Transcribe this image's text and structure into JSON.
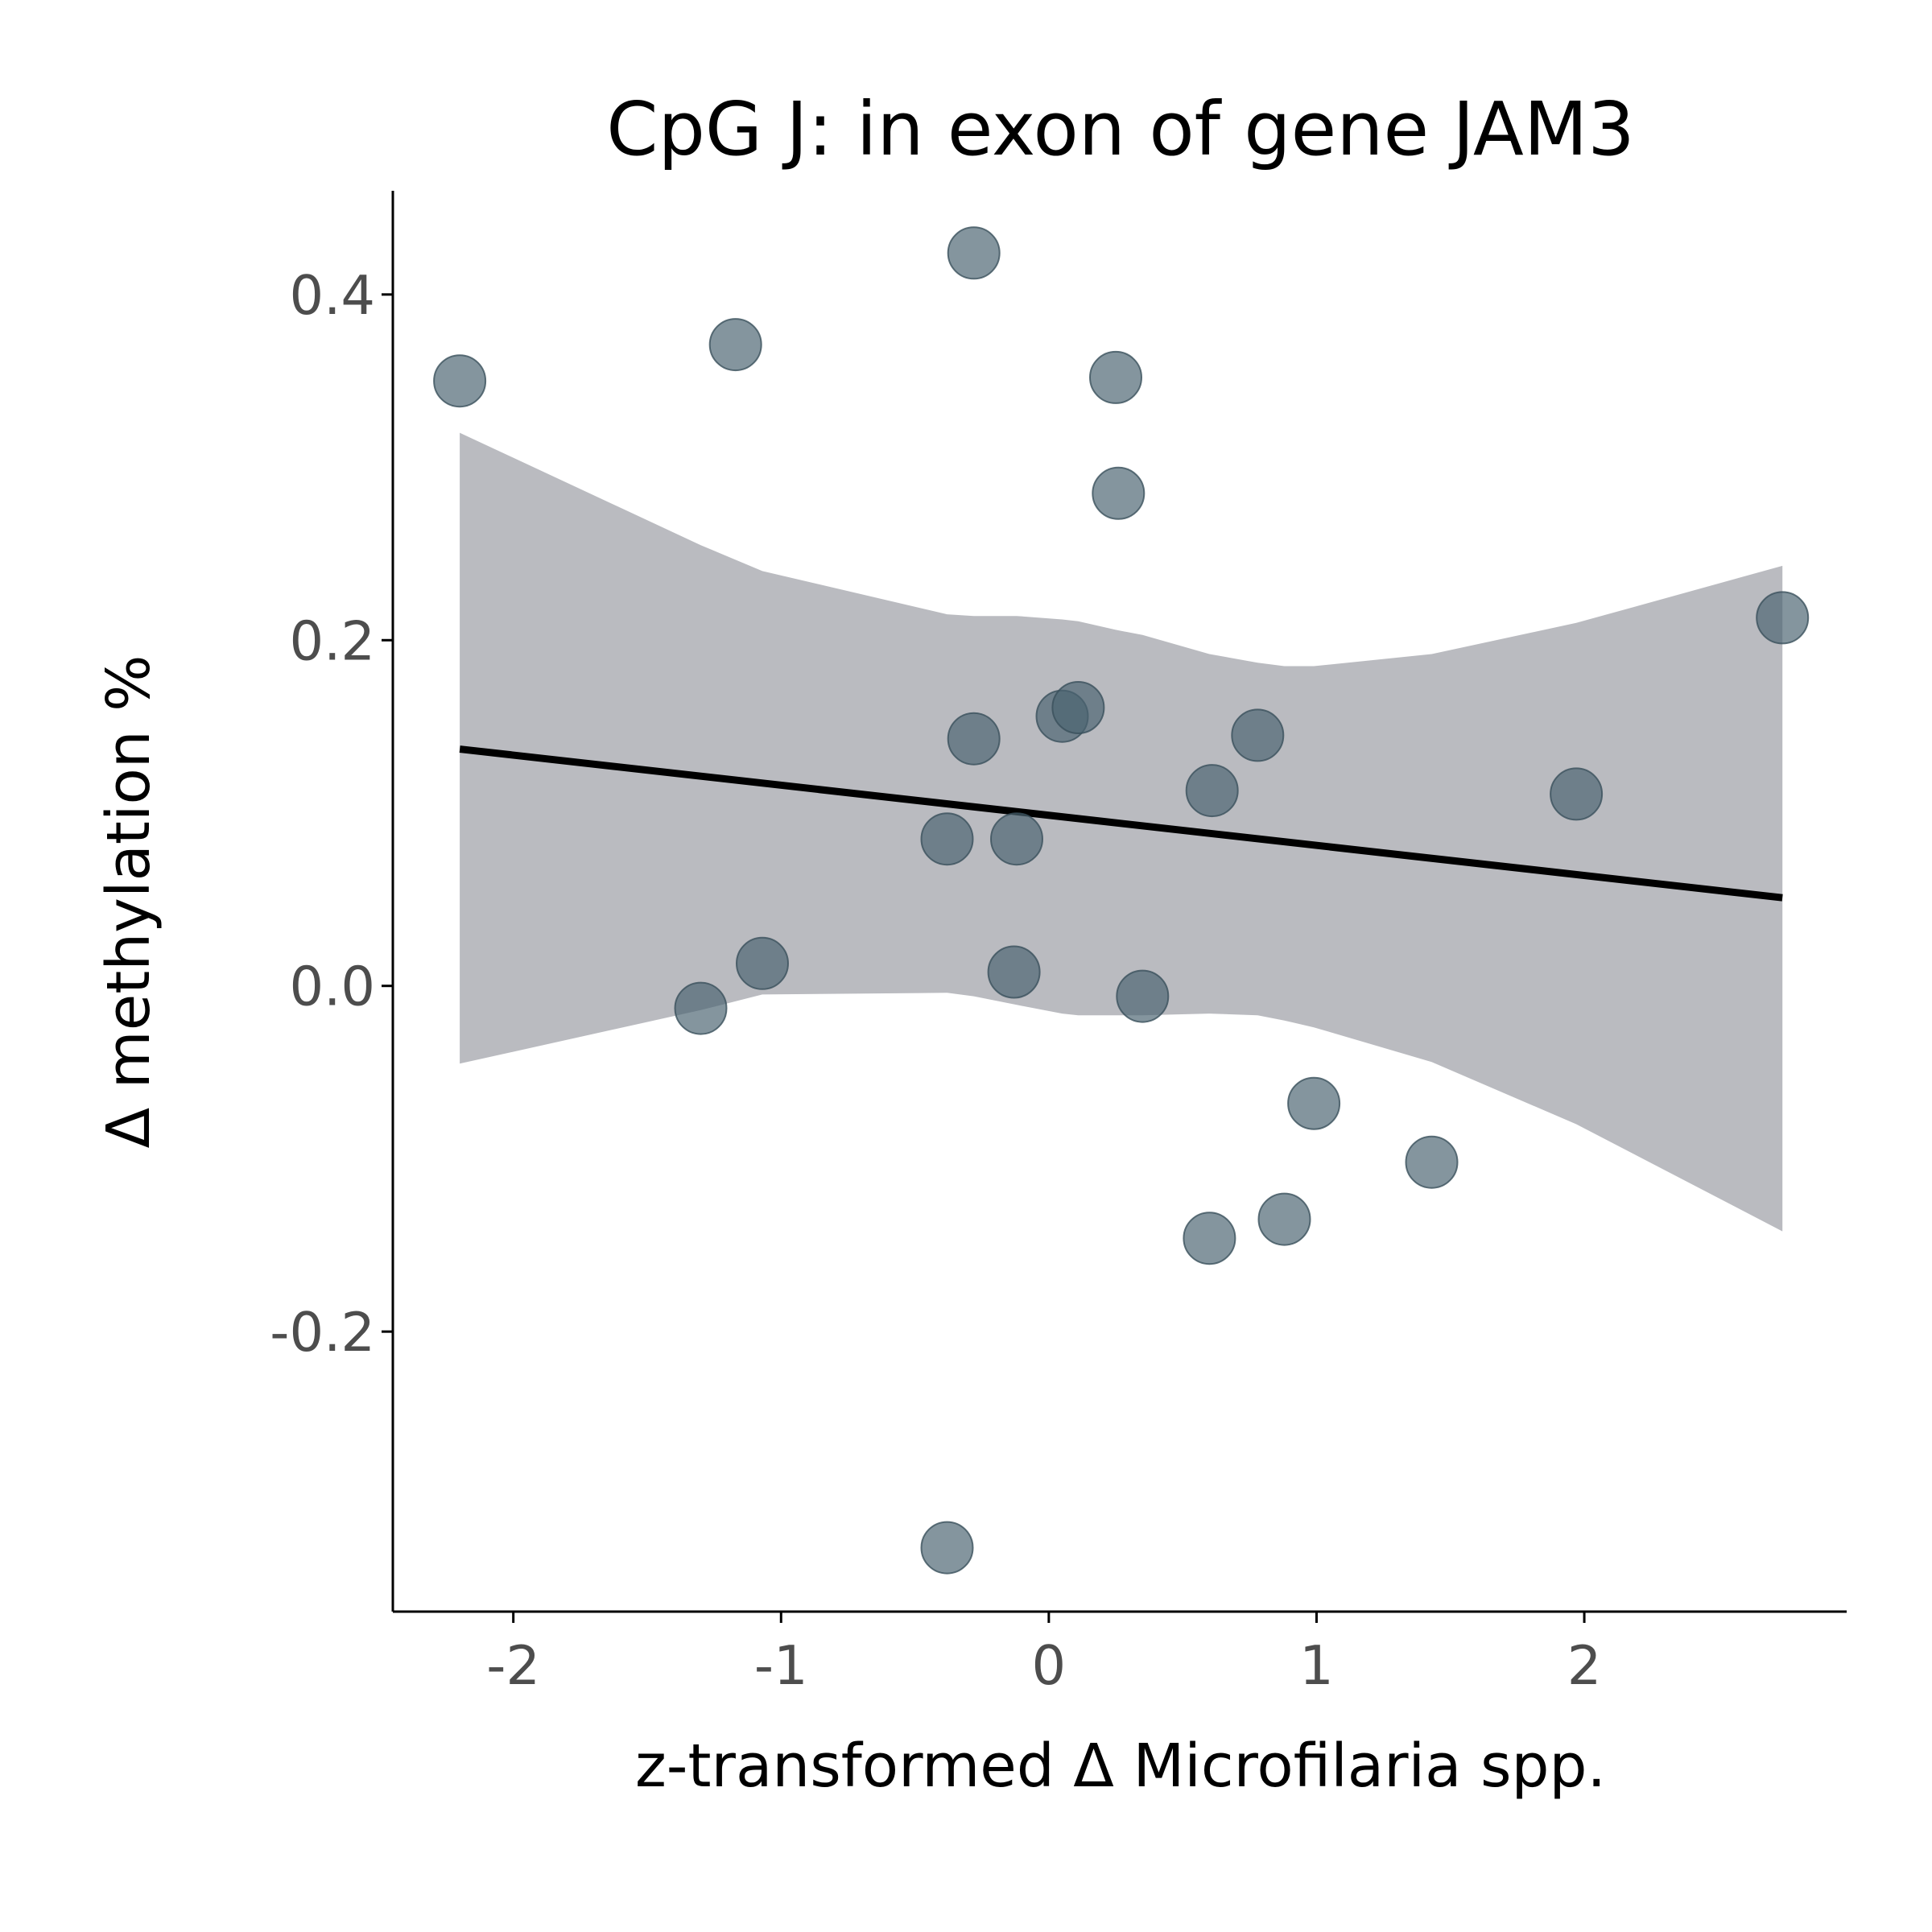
{
  "chart_data": {
    "type": "scatter",
    "title": "CpG J: in exon of gene JAM3",
    "xlabel": "z-transformed Δ Microfilaria spp.",
    "ylabel": "Δ methylation %",
    "xlim": [
      -2.45,
      2.98
    ],
    "ylim": [
      -0.362,
      0.46
    ],
    "x_ticks": [
      -2,
      -1,
      0,
      1,
      2
    ],
    "x_tick_labels": [
      "-2",
      "-1",
      "0",
      "1",
      "2"
    ],
    "y_ticks": [
      -0.2,
      0.0,
      0.2,
      0.4
    ],
    "y_tick_labels": [
      "-0.2",
      "0.0",
      "0.2",
      "0.4"
    ],
    "grid": false,
    "legend": "none",
    "colors": {
      "points": "#4a6370",
      "point_outline": "#3a505b",
      "fit_line": "#000000",
      "confidence_band": "#babbc0"
    },
    "points": [
      {
        "x": -2.2,
        "y": 0.35
      },
      {
        "x": -1.17,
        "y": 0.371
      },
      {
        "x": -1.3,
        "y": -0.013
      },
      {
        "x": -1.07,
        "y": 0.013
      },
      {
        "x": -0.38,
        "y": 0.085
      },
      {
        "x": -0.38,
        "y": -0.325
      },
      {
        "x": -0.28,
        "y": 0.424
      },
      {
        "x": -0.28,
        "y": 0.143
      },
      {
        "x": -0.12,
        "y": 0.085
      },
      {
        "x": -0.13,
        "y": 0.008
      },
      {
        "x": 0.05,
        "y": 0.156
      },
      {
        "x": 0.11,
        "y": 0.161
      },
      {
        "x": 0.25,
        "y": 0.352
      },
      {
        "x": 0.26,
        "y": 0.285
      },
      {
        "x": 0.35,
        "y": -0.006
      },
      {
        "x": 0.6,
        "y": -0.146
      },
      {
        "x": 0.61,
        "y": 0.113
      },
      {
        "x": 0.78,
        "y": 0.145
      },
      {
        "x": 0.88,
        "y": -0.135
      },
      {
        "x": 0.99,
        "y": -0.068
      },
      {
        "x": 1.43,
        "y": -0.102
      },
      {
        "x": 1.97,
        "y": 0.111
      },
      {
        "x": 2.74,
        "y": 0.213
      }
    ],
    "fit": {
      "x": [
        -2.2,
        2.74
      ],
      "y": [
        0.137,
        0.051
      ]
    },
    "confidence_band": [
      {
        "x": -2.2,
        "lower": -0.045,
        "upper": 0.32
      },
      {
        "x": -1.3,
        "lower": -0.014,
        "upper": 0.255
      },
      {
        "x": -1.07,
        "lower": -0.005,
        "upper": 0.24
      },
      {
        "x": -0.38,
        "lower": -0.004,
        "upper": 0.215
      },
      {
        "x": -0.28,
        "lower": -0.006,
        "upper": 0.214
      },
      {
        "x": -0.12,
        "lower": -0.011,
        "upper": 0.214
      },
      {
        "x": 0.05,
        "lower": -0.016,
        "upper": 0.212
      },
      {
        "x": 0.11,
        "lower": -0.017,
        "upper": 0.211
      },
      {
        "x": 0.25,
        "lower": -0.017,
        "upper": 0.206
      },
      {
        "x": 0.35,
        "lower": -0.017,
        "upper": 0.203
      },
      {
        "x": 0.6,
        "lower": -0.016,
        "upper": 0.192
      },
      {
        "x": 0.78,
        "lower": -0.017,
        "upper": 0.187
      },
      {
        "x": 0.88,
        "lower": -0.02,
        "upper": 0.185
      },
      {
        "x": 0.99,
        "lower": -0.024,
        "upper": 0.185
      },
      {
        "x": 1.43,
        "lower": -0.044,
        "upper": 0.192
      },
      {
        "x": 1.97,
        "lower": -0.08,
        "upper": 0.21
      },
      {
        "x": 2.74,
        "lower": -0.142,
        "upper": 0.243
      }
    ]
  }
}
